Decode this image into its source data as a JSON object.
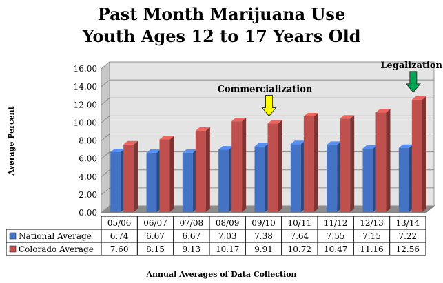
{
  "chart_data": {
    "type": "bar",
    "title": "Past Month Marijuana Use",
    "subtitle": "Youth Ages 12 to 17 Years Old",
    "xlabel": "Annual Averages of Data Collection",
    "ylabel": "Average Percent",
    "ylim": [
      0,
      16
    ],
    "yticks": [
      "0.00",
      "2.00",
      "4.00",
      "6.00",
      "8.00",
      "10.00",
      "12.00",
      "14.00",
      "16.00"
    ],
    "categories": [
      "05/06",
      "06/07",
      "07/08",
      "08/09",
      "09/10",
      "10/11",
      "11/12",
      "12/13",
      "13/14"
    ],
    "series": [
      {
        "name": "National Average",
        "color": "#4472C4",
        "values": [
          6.74,
          6.67,
          6.67,
          7.03,
          7.38,
          7.64,
          7.55,
          7.15,
          7.22
        ],
        "labels": [
          "6.74",
          "6.67",
          "6.67",
          "7.03",
          "7.38",
          "7.64",
          "7.55",
          "7.15",
          "7.22"
        ]
      },
      {
        "name": "Colorado Average",
        "color": "#C0504D",
        "values": [
          7.6,
          8.15,
          9.13,
          10.17,
          9.91,
          10.72,
          10.47,
          11.16,
          12.56
        ],
        "labels": [
          "7.60",
          "8.15",
          "9.13",
          "10.17",
          "9.91",
          "10.72",
          "10.47",
          "11.16",
          "12.56"
        ]
      }
    ],
    "annotations": [
      {
        "text": "Commercialization",
        "category": "09/10",
        "arrow_color": "#FFFF00"
      },
      {
        "text": "Legalization",
        "category": "13/14",
        "arrow_color": "#00A651"
      }
    ],
    "grid": true,
    "legend": "data-table"
  }
}
